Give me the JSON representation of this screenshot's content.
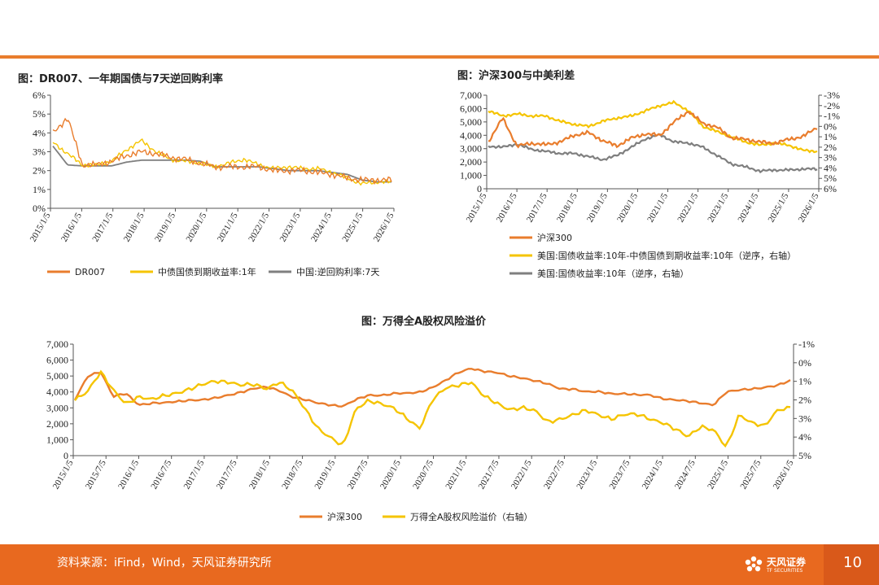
{
  "footer": {
    "source": "资料来源：iFind，Wind，天风证券研究所",
    "brand": "天风证券",
    "brand_en": "TF SECURITIES",
    "page_number": "10"
  },
  "colors": {
    "orange": "#e97d2d",
    "yellow": "#f5c400",
    "gray": "#7f7f7f",
    "footer": "#e8691f"
  },
  "chart_data": [
    {
      "id": "chart1",
      "type": "line",
      "title": "图：DR007、一年期国债与7天逆回购利率",
      "x_labels": [
        "2015/1/5",
        "2016/1/5",
        "2017/1/5",
        "2018/1/5",
        "2019/1/5",
        "2020/1/5",
        "2021/1/5",
        "2022/1/5",
        "2023/1/5",
        "2024/1/5",
        "2025/1/5",
        "2026/1/5"
      ],
      "y_ticks": [
        "0%",
        "1%",
        "2%",
        "3%",
        "4%",
        "5%",
        "6%"
      ],
      "ylim": [
        0,
        6
      ],
      "series": [
        {
          "name": "DR007",
          "color": "#e97d2d",
          "values": [
            4.0,
            4.8,
            2.3,
            2.3,
            2.5,
            2.8,
            3.0,
            2.9,
            2.7,
            2.6,
            2.4,
            2.2,
            2.2,
            2.2,
            2.2,
            2.0,
            2.0,
            2.0,
            1.9,
            1.8,
            1.6,
            1.5,
            1.5,
            1.5
          ]
        },
        {
          "name": "中债国债到期收益率:1年",
          "color": "#f5c400",
          "values": [
            3.5,
            2.9,
            2.3,
            2.3,
            2.5,
            3.1,
            3.6,
            3.0,
            2.6,
            2.5,
            2.4,
            2.2,
            2.4,
            2.6,
            2.3,
            2.1,
            2.2,
            2.1,
            2.1,
            1.9,
            1.6,
            1.3,
            1.4,
            1.4
          ]
        },
        {
          "name": "中国:逆回购利率:7天",
          "color": "#7f7f7f",
          "values": [
            3.3,
            2.3,
            2.25,
            2.25,
            2.25,
            2.45,
            2.55,
            2.55,
            2.55,
            2.55,
            2.5,
            2.2,
            2.2,
            2.2,
            2.2,
            2.1,
            2.0,
            2.0,
            2.0,
            1.9,
            1.8,
            1.5,
            1.4,
            1.4
          ]
        }
      ],
      "legend": [
        "DR007",
        "中债国债到期收益率:1年",
        "中国:逆回购利率:7天"
      ]
    },
    {
      "id": "chart2",
      "type": "line",
      "title": "图：沪深300与中美利差",
      "x_labels": [
        "2015/1/5",
        "2016/1/5",
        "2017/1/5",
        "2018/1/5",
        "2019/1/5",
        "2020/1/5",
        "2021/1/5",
        "2022/1/5",
        "2023/1/5",
        "2024/1/5",
        "2025/1/5",
        "2026/1/5"
      ],
      "y_left_ticks": [
        "0",
        "1,000",
        "2,000",
        "3,000",
        "4,000",
        "5,000",
        "6,000",
        "7,000"
      ],
      "y_right_ticks": [
        "-3%",
        "-2%",
        "-1%",
        "0%",
        "1%",
        "2%",
        "3%",
        "4%",
        "5%",
        "6%"
      ],
      "ylim_left": [
        0,
        7000
      ],
      "ylim_right_inverted": [
        -3,
        6
      ],
      "series": [
        {
          "name": "沪深300",
          "color": "#e97d2d",
          "axis": "left",
          "values": [
            3500,
            5300,
            3200,
            3400,
            3300,
            3500,
            4000,
            4200,
            3600,
            3200,
            3800,
            4100,
            4000,
            5000,
            5800,
            4900,
            4600,
            3800,
            3700,
            3500,
            3400,
            3700,
            3900,
            4600
          ]
        },
        {
          "name": "美国:国债收益率:10年-中债国债到期收益率:10年（逆序，右轴）",
          "color": "#f5c400",
          "axis": "right",
          "values": [
            -1.5,
            -1.0,
            -1.2,
            -1.0,
            -1.0,
            -0.5,
            -0.2,
            0.0,
            -0.5,
            -0.8,
            -1.0,
            -1.5,
            -2.0,
            -2.3,
            -1.5,
            0.0,
            0.5,
            1.0,
            1.5,
            1.8,
            1.6,
            1.8,
            2.3,
            2.4
          ]
        },
        {
          "name": "美国:国债收益率:10年（逆序，右轴）",
          "color": "#7f7f7f",
          "axis": "right",
          "values": [
            1.9,
            2.0,
            1.7,
            2.2,
            2.4,
            2.6,
            2.6,
            2.9,
            3.2,
            2.8,
            2.0,
            1.2,
            0.8,
            1.5,
            1.6,
            2.0,
            2.8,
            3.6,
            3.9,
            4.3,
            4.2,
            4.2,
            4.1,
            4.1
          ]
        }
      ],
      "legend": [
        "沪深300",
        "美国:国债收益率:10年-中债国债到期收益率:10年（逆序，右轴）",
        "美国:国债收益率:10年（逆序，右轴）"
      ]
    },
    {
      "id": "chart3",
      "type": "line",
      "title": "图：万得全A股权风险溢价",
      "x_labels": [
        "2015/1/5",
        "2015/7/5",
        "2016/1/5",
        "2016/7/5",
        "2017/1/5",
        "2017/7/5",
        "2018/1/5",
        "2018/7/5",
        "2019/1/5",
        "2019/7/5",
        "2020/1/5",
        "2020/7/5",
        "2021/1/5",
        "2021/7/5",
        "2022/1/5",
        "2022/7/5",
        "2023/1/5",
        "2023/7/5",
        "2024/1/5",
        "2024/7/5",
        "2025/1/5",
        "2025/7/5",
        "2026/1/5"
      ],
      "y_left_ticks": [
        "0",
        "1,000",
        "2,000",
        "3,000",
        "4,000",
        "5,000",
        "6,000",
        "7,000"
      ],
      "y_right_ticks": [
        "-1%",
        "0%",
        "1%",
        "2%",
        "3%",
        "4%",
        "5%"
      ],
      "ylim_left": [
        0,
        7000
      ],
      "ylim_right_inverted": [
        -1,
        5
      ],
      "series": [
        {
          "name": "沪深300",
          "color": "#e97d2d",
          "axis": "left",
          "values": [
            3500,
            5000,
            5300,
            3700,
            3900,
            3200,
            3300,
            3300,
            3400,
            3500,
            3500,
            3600,
            3800,
            4000,
            4200,
            4300,
            4100,
            3700,
            3500,
            3300,
            3200,
            3100,
            3500,
            3800,
            3800,
            3900,
            3900,
            4000,
            4300,
            4700,
            5200,
            5500,
            5300,
            5200,
            5000,
            4900,
            4700,
            4500,
            4200,
            4200,
            4000,
            4000,
            3900,
            3900,
            3800,
            3800,
            3600,
            3500,
            3400,
            3300,
            3200,
            4000,
            4100,
            4200,
            4300,
            4400,
            4700
          ]
        },
        {
          "name": "万得全A股权风险溢价（右轴）",
          "color": "#f5c400",
          "axis": "right",
          "values": [
            2.0,
            1.5,
            0.5,
            1.5,
            2.2,
            1.8,
            2.0,
            1.8,
            1.6,
            1.4,
            1.2,
            1.0,
            1.0,
            1.2,
            1.2,
            1.4,
            1.0,
            1.5,
            2.5,
            3.5,
            4.0,
            4.5,
            2.5,
            2.0,
            2.2,
            2.5,
            3.0,
            3.5,
            2.0,
            1.4,
            1.2,
            1.0,
            1.8,
            2.2,
            2.5,
            2.4,
            2.6,
            3.2,
            3.0,
            2.8,
            2.6,
            2.8,
            3.0,
            2.8,
            2.8,
            3.0,
            3.2,
            3.6,
            4.0,
            3.4,
            3.6,
            4.6,
            2.8,
            3.2,
            3.4,
            2.6,
            2.4
          ]
        }
      ],
      "legend": [
        "沪深300",
        "万得全A股权风险溢价（右轴）"
      ]
    }
  ]
}
